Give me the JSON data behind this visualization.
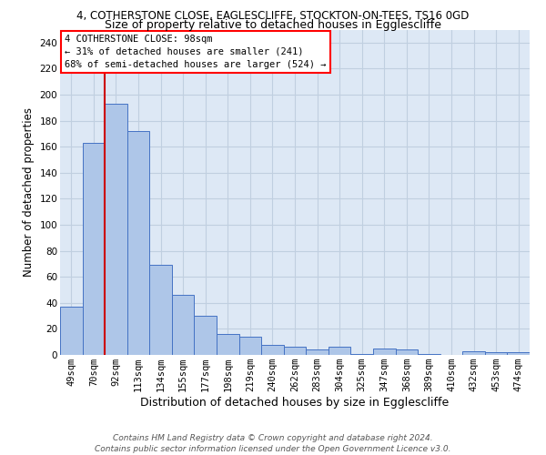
{
  "title1": "4, COTHERSTONE CLOSE, EAGLESCLIFFE, STOCKTON-ON-TEES, TS16 0GD",
  "title2": "Size of property relative to detached houses in Egglescliffe",
  "xlabel": "Distribution of detached houses by size in Egglescliffe",
  "ylabel": "Number of detached properties",
  "categories": [
    "49sqm",
    "70sqm",
    "92sqm",
    "113sqm",
    "134sqm",
    "155sqm",
    "177sqm",
    "198sqm",
    "219sqm",
    "240sqm",
    "262sqm",
    "283sqm",
    "304sqm",
    "325sqm",
    "347sqm",
    "368sqm",
    "389sqm",
    "410sqm",
    "432sqm",
    "453sqm",
    "474sqm"
  ],
  "values": [
    37,
    163,
    193,
    172,
    69,
    46,
    30,
    16,
    14,
    8,
    6,
    4,
    6,
    1,
    5,
    4,
    1,
    0,
    3,
    2,
    2
  ],
  "bar_color": "#aec6e8",
  "bar_edge_color": "#4472c4",
  "red_line_index": 2,
  "red_line_color": "#cc0000",
  "annotation_line1": "4 COTHERSTONE CLOSE: 98sqm",
  "annotation_line2": "← 31% of detached houses are smaller (241)",
  "annotation_line3": "68% of semi-detached houses are larger (524) →",
  "footer_line1": "Contains HM Land Registry data © Crown copyright and database right 2024.",
  "footer_line2": "Contains public sector information licensed under the Open Government Licence v3.0.",
  "ylim": [
    0,
    250
  ],
  "yticks": [
    0,
    20,
    40,
    60,
    80,
    100,
    120,
    140,
    160,
    180,
    200,
    220,
    240
  ],
  "background_color": "#ffffff",
  "plot_bg_color": "#dde8f5",
  "grid_color": "#c0cfe0",
  "title1_fontsize": 8.5,
  "title2_fontsize": 9.0,
  "xlabel_fontsize": 9.0,
  "ylabel_fontsize": 8.5,
  "tick_fontsize": 7.5,
  "annotation_fontsize": 7.5,
  "footer_fontsize": 6.5
}
